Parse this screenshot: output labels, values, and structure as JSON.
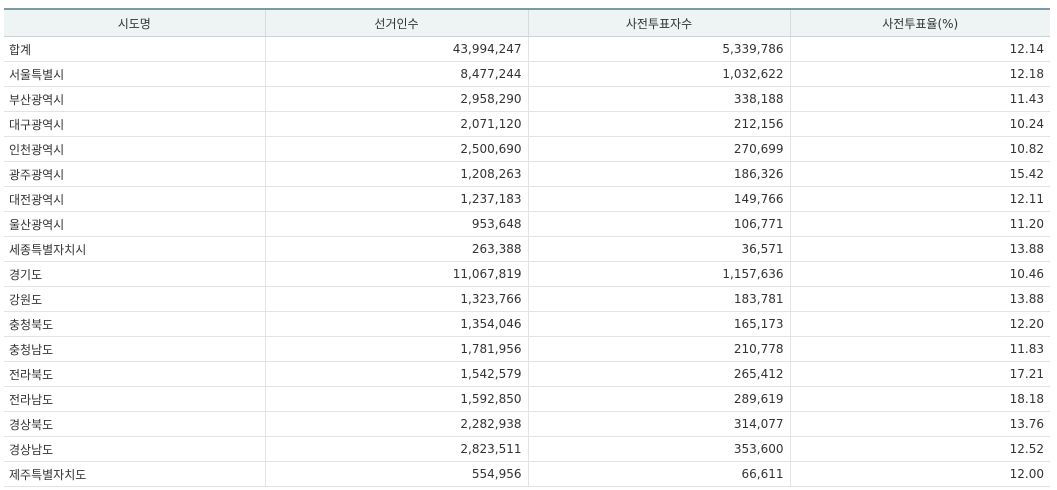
{
  "table": {
    "headers": [
      "시도명",
      "선거인수",
      "사전투표자수",
      "사전투표율(%)"
    ],
    "rows": [
      [
        "합계",
        "43,994,247",
        "5,339,786",
        "12.14"
      ],
      [
        "서울특별시",
        "8,477,244",
        "1,032,622",
        "12.18"
      ],
      [
        "부산광역시",
        "2,958,290",
        "338,188",
        "11.43"
      ],
      [
        "대구광역시",
        "2,071,120",
        "212,156",
        "10.24"
      ],
      [
        "인천광역시",
        "2,500,690",
        "270,699",
        "10.82"
      ],
      [
        "광주광역시",
        "1,208,263",
        "186,326",
        "15.42"
      ],
      [
        "대전광역시",
        "1,237,183",
        "149,766",
        "12.11"
      ],
      [
        "울산광역시",
        "953,648",
        "106,771",
        "11.20"
      ],
      [
        "세종특별자치시",
        "263,388",
        "36,571",
        "13.88"
      ],
      [
        "경기도",
        "11,067,819",
        "1,157,636",
        "10.46"
      ],
      [
        "강원도",
        "1,323,766",
        "183,781",
        "13.88"
      ],
      [
        "충청북도",
        "1,354,046",
        "165,173",
        "12.20"
      ],
      [
        "충청남도",
        "1,781,956",
        "210,778",
        "11.83"
      ],
      [
        "전라북도",
        "1,542,579",
        "265,412",
        "17.21"
      ],
      [
        "전라남도",
        "1,592,850",
        "289,619",
        "18.18"
      ],
      [
        "경상북도",
        "2,282,938",
        "314,077",
        "13.76"
      ],
      [
        "경상남도",
        "2,823,511",
        "353,600",
        "12.52"
      ],
      [
        "제주특별자치도",
        "554,956",
        "66,611",
        "12.00"
      ]
    ]
  }
}
